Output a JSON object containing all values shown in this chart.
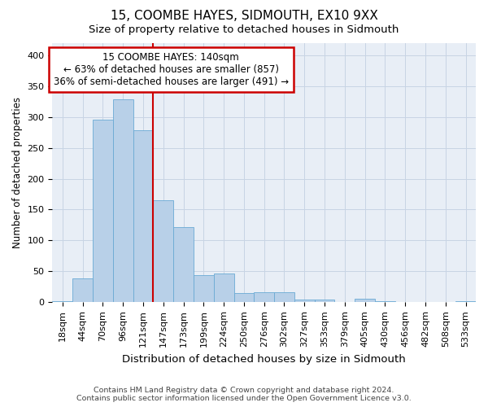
{
  "title1": "15, COOMBE HAYES, SIDMOUTH, EX10 9XX",
  "title2": "Size of property relative to detached houses in Sidmouth",
  "xlabel": "Distribution of detached houses by size in Sidmouth",
  "ylabel": "Number of detached properties",
  "categories": [
    "18sqm",
    "44sqm",
    "70sqm",
    "96sqm",
    "121sqm",
    "147sqm",
    "173sqm",
    "199sqm",
    "224sqm",
    "250sqm",
    "276sqm",
    "302sqm",
    "327sqm",
    "353sqm",
    "379sqm",
    "405sqm",
    "430sqm",
    "456sqm",
    "482sqm",
    "508sqm",
    "533sqm"
  ],
  "values": [
    2,
    38,
    295,
    328,
    278,
    165,
    122,
    44,
    46,
    15,
    16,
    16,
    4,
    5,
    0,
    6,
    2,
    0,
    1,
    0,
    2
  ],
  "bar_color": "#b8d0e8",
  "bar_edgecolor": "#6aaad4",
  "vline_x": 4.5,
  "vline_color": "#cc0000",
  "annotation_line1": "15 COOMBE HAYES: 140sqm",
  "annotation_line2": "← 63% of detached houses are smaller (857)",
  "annotation_line3": "36% of semi-detached houses are larger (491) →",
  "annotation_box_color": "#ffffff",
  "annotation_box_edgecolor": "#cc0000",
  "ylim": [
    0,
    420
  ],
  "yticks": [
    0,
    50,
    100,
    150,
    200,
    250,
    300,
    350,
    400
  ],
  "footer1": "Contains HM Land Registry data © Crown copyright and database right 2024.",
  "footer2": "Contains public sector information licensed under the Open Government Licence v3.0.",
  "grid_color": "#c8d4e4",
  "bg_color": "#e8eef6",
  "title1_fontsize": 11,
  "title2_fontsize": 9.5,
  "ylabel_fontsize": 8.5,
  "xlabel_fontsize": 9.5,
  "tick_fontsize": 8,
  "ann_fontsize": 8.5,
  "footer_fontsize": 6.8
}
